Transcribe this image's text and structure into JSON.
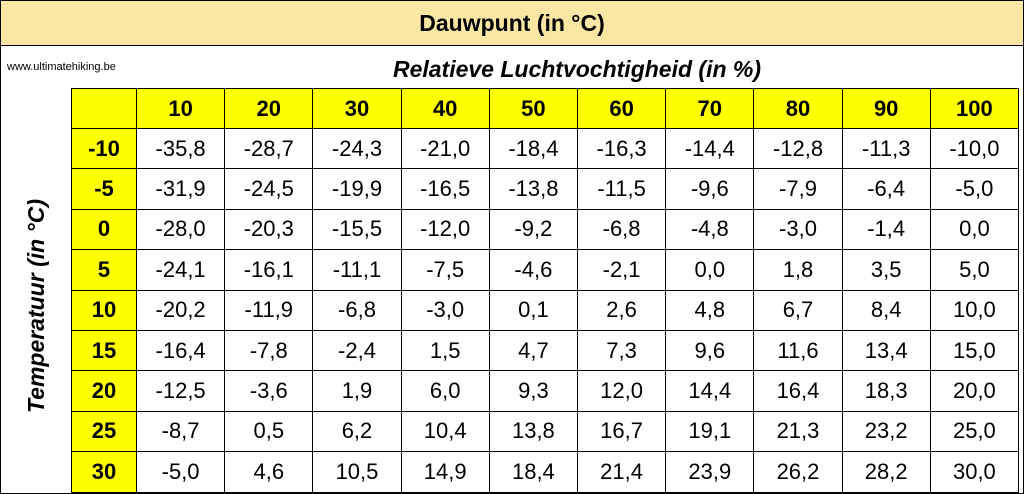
{
  "header": {
    "title": "Dauwpunt (in °C)",
    "website": "www.ultimatehiking.be"
  },
  "table": {
    "column_axis_label": "Relatieve Luchtvochtigheid (in %)",
    "row_axis_label": "Temperatuur (in °C)",
    "columns": [
      "10",
      "20",
      "30",
      "40",
      "50",
      "60",
      "70",
      "80",
      "90",
      "100"
    ],
    "row_labels": [
      "-10",
      "-5",
      "0",
      "5",
      "10",
      "15",
      "20",
      "25",
      "30"
    ],
    "cells": [
      [
        "-35,8",
        "-28,7",
        "-24,3",
        "-21,0",
        "-18,4",
        "-16,3",
        "-14,4",
        "-12,8",
        "-11,3",
        "-10,0"
      ],
      [
        "-31,9",
        "-24,5",
        "-19,9",
        "-16,5",
        "-13,8",
        "-11,5",
        "-9,6",
        "-7,9",
        "-6,4",
        "-5,0"
      ],
      [
        "-28,0",
        "-20,3",
        "-15,5",
        "-12,0",
        "-9,2",
        "-6,8",
        "-4,8",
        "-3,0",
        "-1,4",
        "0,0"
      ],
      [
        "-24,1",
        "-16,1",
        "-11,1",
        "-7,5",
        "-4,6",
        "-2,1",
        "0,0",
        "1,8",
        "3,5",
        "5,0"
      ],
      [
        "-20,2",
        "-11,9",
        "-6,8",
        "-3,0",
        "0,1",
        "2,6",
        "4,8",
        "6,7",
        "8,4",
        "10,0"
      ],
      [
        "-16,4",
        "-7,8",
        "-2,4",
        "1,5",
        "4,7",
        "7,3",
        "9,6",
        "11,6",
        "13,4",
        "15,0"
      ],
      [
        "-12,5",
        "-3,6",
        "1,9",
        "6,0",
        "9,3",
        "12,0",
        "14,4",
        "16,4",
        "18,3",
        "20,0"
      ],
      [
        "-8,7",
        "0,5",
        "6,2",
        "10,4",
        "13,8",
        "16,7",
        "19,1",
        "21,3",
        "23,2",
        "25,0"
      ],
      [
        "-5,0",
        "4,6",
        "10,5",
        "14,9",
        "18,4",
        "21,4",
        "23,9",
        "26,2",
        "28,2",
        "30,0"
      ]
    ]
  }
}
